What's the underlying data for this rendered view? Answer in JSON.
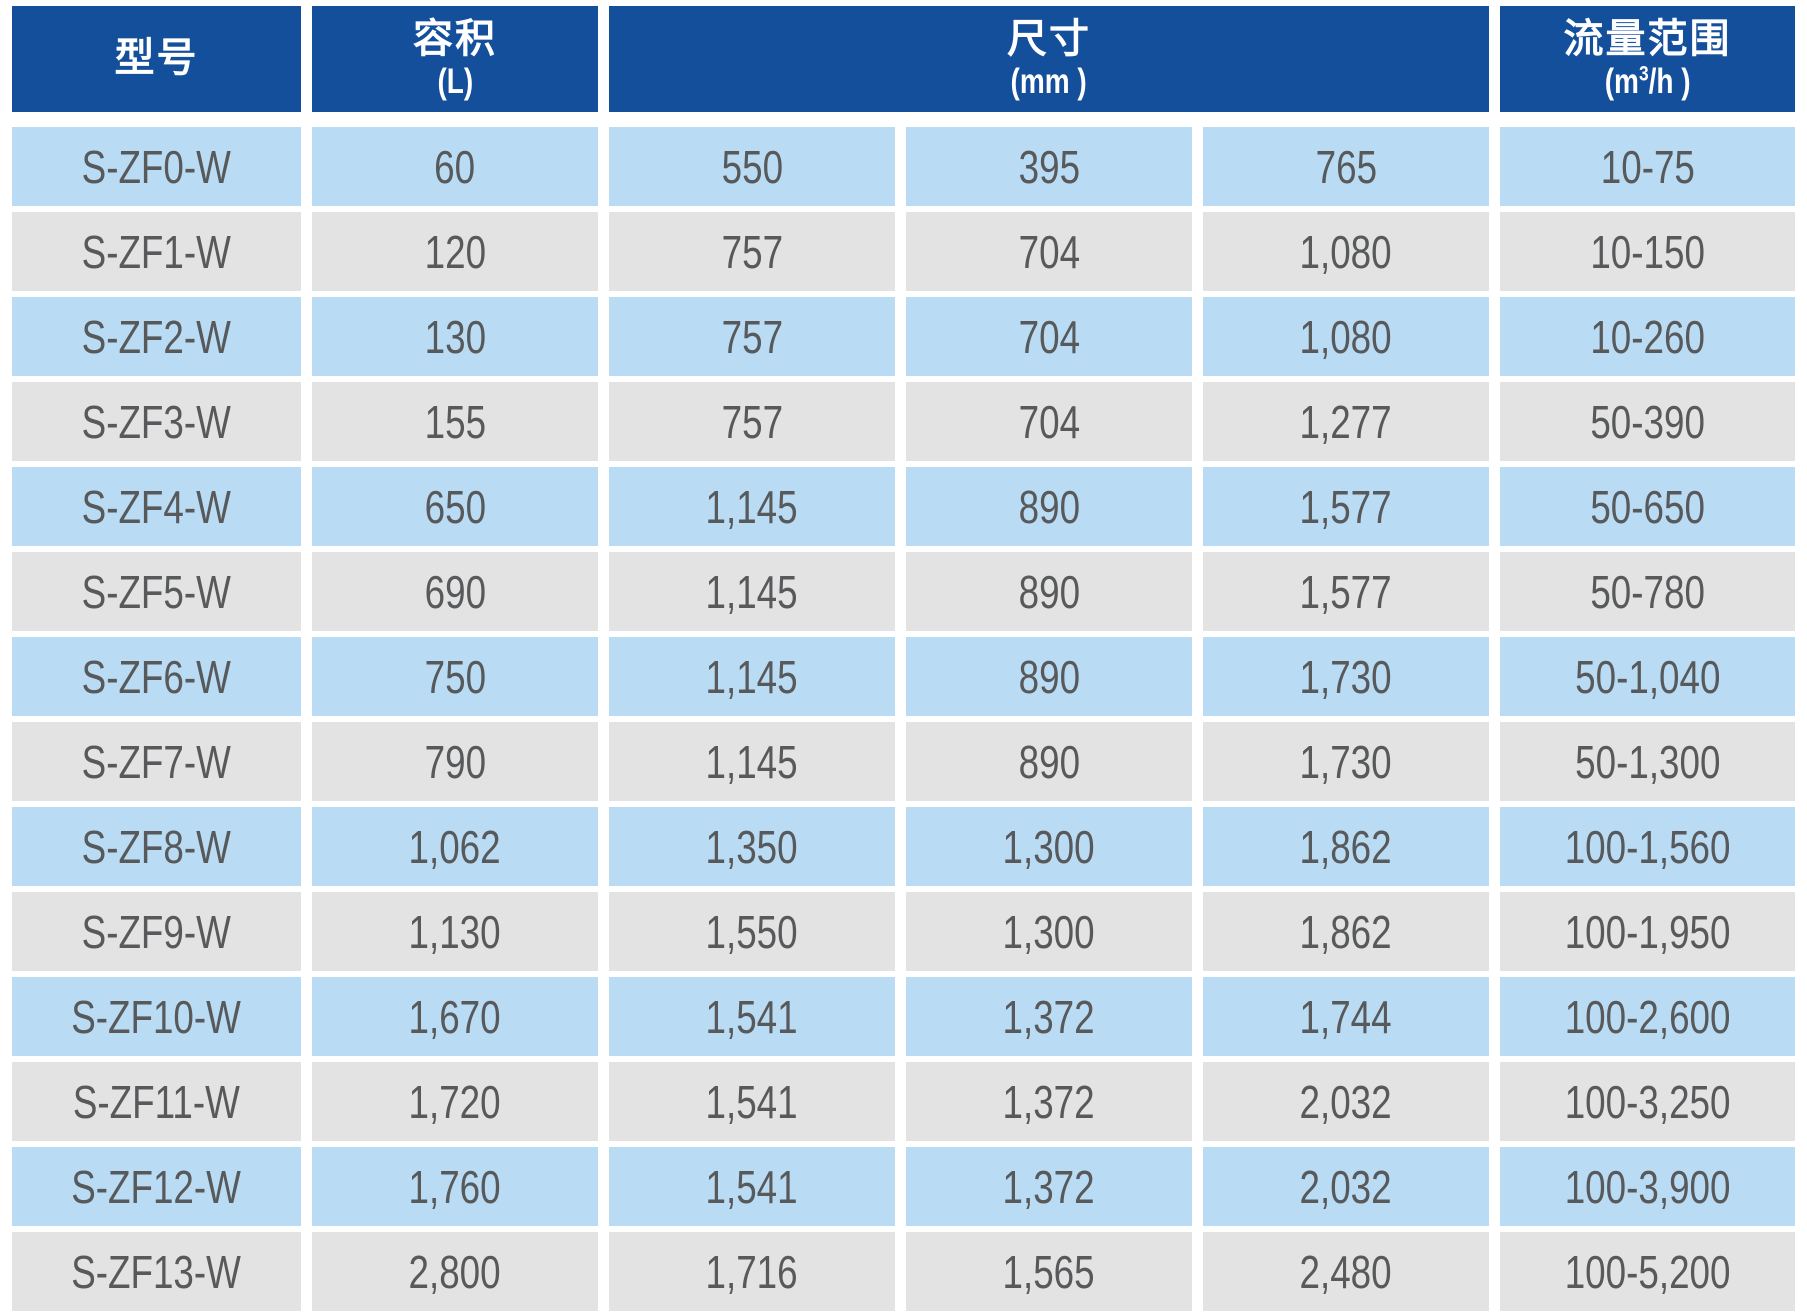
{
  "colors": {
    "header_bg": "#134F9B",
    "row_blue": "#B9DCF4",
    "row_gray": "#E3E3E3",
    "cell_text": "#58595B",
    "header_text": "#FFFFFF"
  },
  "table": {
    "headers": {
      "model": "型号",
      "volume": "容积",
      "volume_unit": "(L)",
      "dimensions": "尺寸",
      "dimensions_unit": "(mm )",
      "flow": "流量范围",
      "flow_unit_pre": "(m",
      "flow_unit_sup": "3",
      "flow_unit_post": "/h )"
    },
    "rows": [
      [
        "S-ZF0-W",
        "60",
        "550",
        "395",
        "765",
        "10-75"
      ],
      [
        "S-ZF1-W",
        "120",
        "757",
        "704",
        "1,080",
        "10-150"
      ],
      [
        "S-ZF2-W",
        "130",
        "757",
        "704",
        "1,080",
        "10-260"
      ],
      [
        "S-ZF3-W",
        "155",
        "757",
        "704",
        "1,277",
        "50-390"
      ],
      [
        "S-ZF4-W",
        "650",
        "1,145",
        "890",
        "1,577",
        "50-650"
      ],
      [
        "S-ZF5-W",
        "690",
        "1,145",
        "890",
        "1,577",
        "50-780"
      ],
      [
        "S-ZF6-W",
        "750",
        "1,145",
        "890",
        "1,730",
        "50-1,040"
      ],
      [
        "S-ZF7-W",
        "790",
        "1,145",
        "890",
        "1,730",
        "50-1,300"
      ],
      [
        "S-ZF8-W",
        "1,062",
        "1,350",
        "1,300",
        "1,862",
        "100-1,560"
      ],
      [
        "S-ZF9-W",
        "1,130",
        "1,550",
        "1,300",
        "1,862",
        "100-1,950"
      ],
      [
        "S-ZF10-W",
        "1,670",
        "1,541",
        "1,372",
        "1,744",
        "100-2,600"
      ],
      [
        "S-ZF11-W",
        "1,720",
        "1,541",
        "1,372",
        "2,032",
        "100-3,250"
      ],
      [
        "S-ZF12-W",
        "1,760",
        "1,541",
        "1,372",
        "2,032",
        "100-3,900"
      ],
      [
        "S-ZF13-W",
        "2,800",
        "1,716",
        "1,565",
        "2,480",
        "100-5,200"
      ]
    ]
  }
}
